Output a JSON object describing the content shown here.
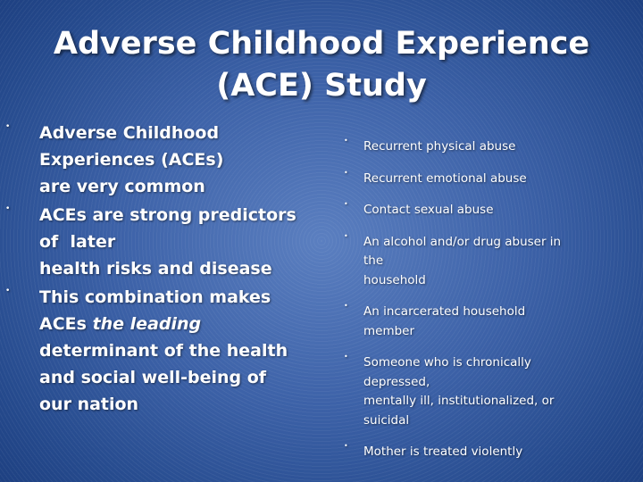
{
  "title": {
    "line1": "Adverse Childhood Experience",
    "line2": "(ACE) Study"
  },
  "left_points": [
    {
      "lines": [
        "Adverse Childhood",
        "Experiences (ACEs)",
        "are very common"
      ]
    },
    {
      "lines": [
        "ACEs are strong predictors",
        "of  later",
        "health risks and disease"
      ]
    },
    {
      "line1": "This combination makes",
      "line2_prefix": "ACEs ",
      "line2_italic": "the leading",
      "line3": "determinant of the health",
      "line4": "and social well-being of",
      "line5": "our nation"
    }
  ],
  "right_points": [
    {
      "lines": [
        "Recurrent physical abuse"
      ]
    },
    {
      "lines": [
        "Recurrent emotional abuse"
      ]
    },
    {
      "lines": [
        "Contact sexual abuse"
      ]
    },
    {
      "lines": [
        "An alcohol and/or drug abuser in",
        "the",
        "household"
      ]
    },
    {
      "lines": [
        "An incarcerated household",
        "member"
      ]
    },
    {
      "lines": [
        "Someone who is chronically",
        "depressed,",
        "mentally ill, institutionalized, or",
        "suicidal"
      ]
    },
    {
      "lines": [
        "Mother is treated violently"
      ]
    }
  ],
  "bullet_symbol": "•"
}
